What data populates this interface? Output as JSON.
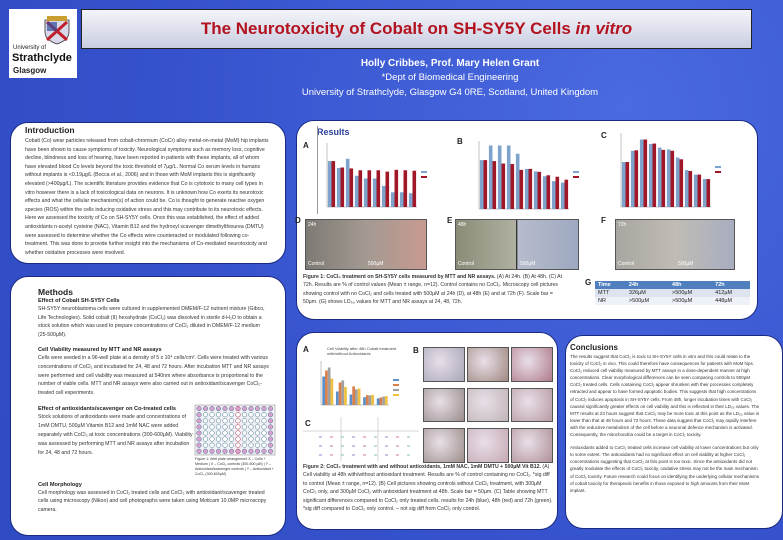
{
  "header": {
    "logo": {
      "line1": "University of",
      "line2": "Strathclyde",
      "line3": "Glasgow"
    },
    "title": "The Neurotoxicity of Cobalt on SH-SY5Y Cells ",
    "title_italic": "in vitro",
    "authors": "Holly Cribbes, Prof. Mary Helen Grant",
    "dept": "*Dept of Biomedical Engineering",
    "address": "University of Strathclyde, Glasgow G4 0RE, Scotland, United Kingdom"
  },
  "introduction": {
    "heading": "Introduction",
    "body": "Cobalt (Co) wear particles released from cobalt-chromium (CoCr) alloy metal-on-metal (MoM) hip implants have been shown to cause symptoms of toxicity. Neurological symptoms such as memory loss, cognitive decline, blindness and loss of hearing, have been reported in patients with these implants, all of whom have elevated blood Co levels beyond the toxic threshold of 7µg/L. Normal Co serum levels in humans without implants is <0.19µg/L (Bocca et al., 2006) and in those with MoM implants this is significantly elevated (>400µg/L). The scientific literature provides evidence that Co is cytotoxic to many cell types in vitro however there is a lack of toxicological data on neurons. It is unknown how Co exerts its neurotoxic effects and what the cellular mechanism(s) of action could be. Co is thought to generate reactive oxygen species (ROS) within the cells inducing oxidative stress and this may contribute to its neurotoxic effects. Here we assessed the toxicity of Co on SH-SY5Y cells. Once this was established, the effect of added antioxidants n-acetyl cysteine (NAC), Vitamin B12 and the hydroxyl scavenger dimethylthiourea (DMTU) were assessed to determine whether the Co effects were counteracted or modulated following co-treatment. This was done to provide further insight into the mechanisms of Co-mediated neurotoxicity and whether oxidative processes were involved."
  },
  "methods": {
    "heading": "Methods",
    "sections": [
      {
        "title": "Effect of Cobalt SH-SY5Y Cells",
        "body": "SH-SY5Y neuroblastoma cells were cultured in supplemented DMEM/F-12 nutrient mixture (Gibco, Life Technologies). Solid cobalt (II) hexahydrate (CoCl₂) was dissolved in sterile d-H₂O to obtain a stock solution which was used to prepare concentrations of CoCl₂ diluted in DMEM/F-12 medium (25-500µM)."
      },
      {
        "title": "Cell Viability measured by MTT and NR assays",
        "body": "Cells were seeded in a 96-well plate at a density of 5 x 10⁴ cells/cm². Cells were treated with various concentrations of CoCl₂ and incubated for 24, 48 and 72 hours. After incubation MTT and NR assays were performed and cell viability was measured at 540nm where absorbance is proportional to the number of viable cells. MTT and NR assays were also carried out in antioxidant/scavenger CoCl₂-treated cell experiments."
      },
      {
        "title": "Effect of antioxidants/scavenger on Co-treated cells",
        "body": "Stock solutions of antioxidants were made and concentrations of 1mM DMTU, 500µM Vitamin B12 and 1mM NAC were added separately with CoCl₂ at toxic concentrations (300-600µM). Viability was assessed by performing MTT and NR assays after incubation for 24, 48 and 72 hours."
      },
      {
        "title": "Cell Morphology",
        "body": "Cell morphology was assessed in CoCl₂ treated cells and CoCl₂ with antioxidant/scavenger treated cells using microscopy (Nikon) and cell photographs were taken using Moticam 10.0MP microscopy camera."
      }
    ],
    "plate_caption": "Figure 1: Well plate arrangement X – Cells + Medium | X – CoCl₂ controls (300-600 µM) | Y – Antioxidant/scavenger controls | Y – Antioxidant + CoCl₂ (300-600µM)"
  },
  "results": {
    "heading": "Results",
    "panel_labels": [
      "A",
      "B",
      "C",
      "D",
      "E",
      "F",
      "G"
    ],
    "photo_labels": {
      "D": [
        "24h",
        "Control",
        "500µM"
      ],
      "E": [
        "48h",
        "Control",
        "500µM"
      ],
      "F": [
        "72h",
        "Control",
        "500µM"
      ]
    },
    "caption_bold": "Figure 1: CoCl₂ treatment on SH-SY5Y cells measured by MTT and NR assays.",
    "caption": " (A) At 24h. (B) At 48h. (C) At 72h. Results are % of control values (Mean ± range, n=12). Control contains no CoCl₂. Microscopy cell pictures showing control with no CoCl₂ and cells treated with 500µM at 24h (D), at 48h (E) and at 72h (F). Scale bar = 50µm. (G) shows LD₅₀ values for MTT and NR assays at 24, 48, 72h.",
    "ld50_table": {
      "headers": [
        "Time",
        "24h",
        "48h",
        "72h"
      ],
      "rows": [
        [
          "MTT",
          "326µM",
          ">500µM",
          "412µM"
        ],
        [
          "NR",
          ">500µM",
          ">500µM",
          "448µM"
        ]
      ]
    },
    "colors": {
      "mtt": "#7ea3cc",
      "nr": "#a01828"
    }
  },
  "chart_data": [
    {
      "type": "bar",
      "panel": "A",
      "series": [
        {
          "values": [
            100,
            85,
            105,
            68,
            62,
            62,
            46,
            32,
            32,
            30
          ]
        },
        {
          "values": [
            100,
            86,
            84,
            80,
            80,
            80,
            77,
            81,
            80,
            79
          ]
        }
      ]
    },
    {
      "type": "bar",
      "panel": "B",
      "series": [
        {
          "values": [
            100,
            130,
            130,
            130,
            113,
            82,
            77,
            67,
            57,
            54
          ]
        },
        {
          "values": [
            100,
            98,
            93,
            92,
            80,
            82,
            76,
            69,
            66,
            60
          ]
        }
      ]
    },
    {
      "type": "bar",
      "panel": "C",
      "series": [
        {
          "values": [
            100,
            125,
            150,
            140,
            132,
            128,
            110,
            82,
            72,
            62
          ]
        },
        {
          "values": [
            100,
            126,
            150,
            141,
            127,
            125,
            106,
            80,
            72,
            62
          ]
        }
      ]
    },
    {
      "type": "bar",
      "panel": "Fig2 A",
      "title": "Cell Viability after 48h Cobalt treatment with/without Antioxidants",
      "series": [
        {
          "values": [
            95,
            45,
            35,
            26,
            22
          ]
        },
        {
          "values": [
            115,
            75,
            62,
            33,
            25
          ]
        },
        {
          "values": [
            125,
            82,
            52,
            32,
            28
          ]
        },
        {
          "values": [
            88,
            60,
            55,
            34,
            30
          ]
        }
      ],
      "colors": [
        "#5a8fc8",
        "#d9804a",
        "#a0a0a0",
        "#f0c040"
      ]
    }
  ],
  "figure2": {
    "panel_labels": [
      "A",
      "B",
      "C"
    ],
    "caption_bold": "Figure 2: CoCl₂ treatment with and without antioxidants, 1mM NAC, 1mM DMTU + 500µM Vit B12.",
    "caption": " (A) Cell viability at 48h with/without antioxidant treatment. Results are % of control containing no CoCl₂. *sig diff to control (Mean ± range, n=12). (B) Cell pictures showing controls without CoCl₂ treatment, with 300µM CoCl₂ only, and 300µM CoCl₂ with antioxidant treatment at 48h. Scale bar = 50µm. (C) Table showing MTT significant differences compared to CoCl₂ only treated cells. results for 24h (blue), 48h (red) and 72h (green). *sig diff compared to CoCl₂ only control. – not sig diff from CoCl₂ only control."
  },
  "conclusions": {
    "heading": "Conclusions",
    "paragraphs": [
      "The results suggest that CoCl₂ is toxic to SH-SY5Y cells in vitro and this could relate to the toxicity of CoCl₂ in vivo. This could therefore have consequences for patients with MoM hips. CoCl₂ reduced cell viability measured by MTT assays in a dose-dependent manner at high concentrations. Clear morphological differences can be seen comparing controls to 500µM CoCl₂ treated cells. Cells containing CoCl₂ appear shrunken with their processes completely retracted and appear to have formed apoptotic bodies. This suggests that high concentrations of CoCl₂ induces apoptosis in SH-SY5Y cells. From 48h, longer incubation times with CoCl₂ caused significantly greater effects on cell viability and this is reflected in their LD₅₀ values. The MTT results at 24 hours suggest that CoCl₂ may be more toxic at this point as the LD₅₀ value is lower than that at 48 hours and 72 hours. These data suggest that CoCl₂ may rapidly interfere with the reductive metabolism of the cell before a neuronal defence mechanism is activated. Consequently, the mitochondria could be a target in CoCl₂ toxicity.",
      "Antioxidants added to CoCl₂ treated cells increase cell viability at lower concentrations but only to some extent. The antioxidants had no significant effect on cell viability at higher CoCl₂ concentrations suggesting that CoCl₂ at this point is too toxic. Since the antioxidants did not greatly modulate the effects of CoCl₂ toxicity, oxidative stress may not be the main mechanism of CoCl₂ toxicity. Future research could focus on identifying the underlying cellular mechanisms of cobalt toxicity for therapeutic benefits in those exposed to high amounts from their MoM implant."
    ]
  }
}
